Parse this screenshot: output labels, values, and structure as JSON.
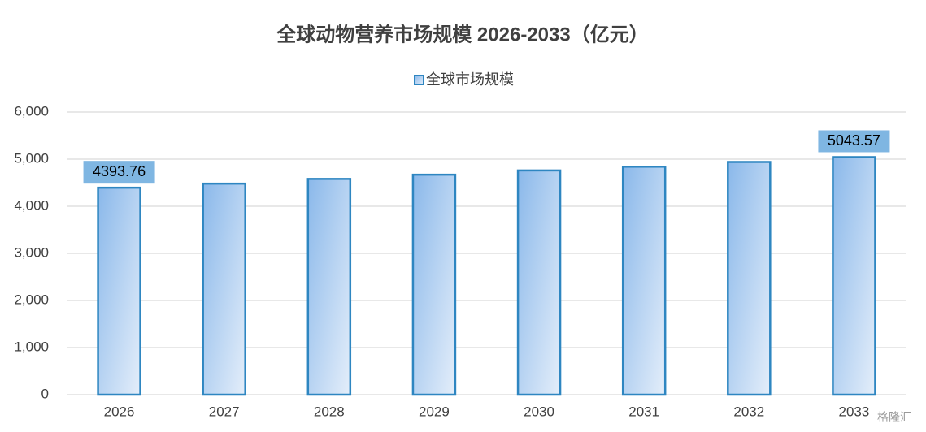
{
  "chart_data": {
    "type": "bar",
    "title": "全球动物营养市场规模 2026-2033（亿元）",
    "categories": [
      "2026",
      "2027",
      "2028",
      "2029",
      "2030",
      "2031",
      "2032",
      "2033"
    ],
    "series": [
      {
        "name": "全球市场规模",
        "color": "#2e86c1",
        "values": [
          4393.76,
          4480,
          4580,
          4670,
          4760,
          4840,
          4940,
          5043.57
        ],
        "value_labels": [
          "4393.76",
          null,
          null,
          null,
          null,
          null,
          null,
          "5043.57"
        ]
      }
    ],
    "ylim": [
      0,
      6000
    ],
    "yticks": [
      0,
      {
        "value": 1000,
        "label": "1,000"
      },
      {
        "value": 2000,
        "label": "2,000"
      },
      {
        "value": 3000,
        "label": "3,000"
      },
      {
        "value": 4000,
        "label": "4,000"
      },
      {
        "value": 5000,
        "label": "5,000"
      },
      {
        "value": 6000,
        "label": "6,000"
      }
    ],
    "grid": true,
    "legend": "top",
    "watermark": "格隆汇"
  }
}
